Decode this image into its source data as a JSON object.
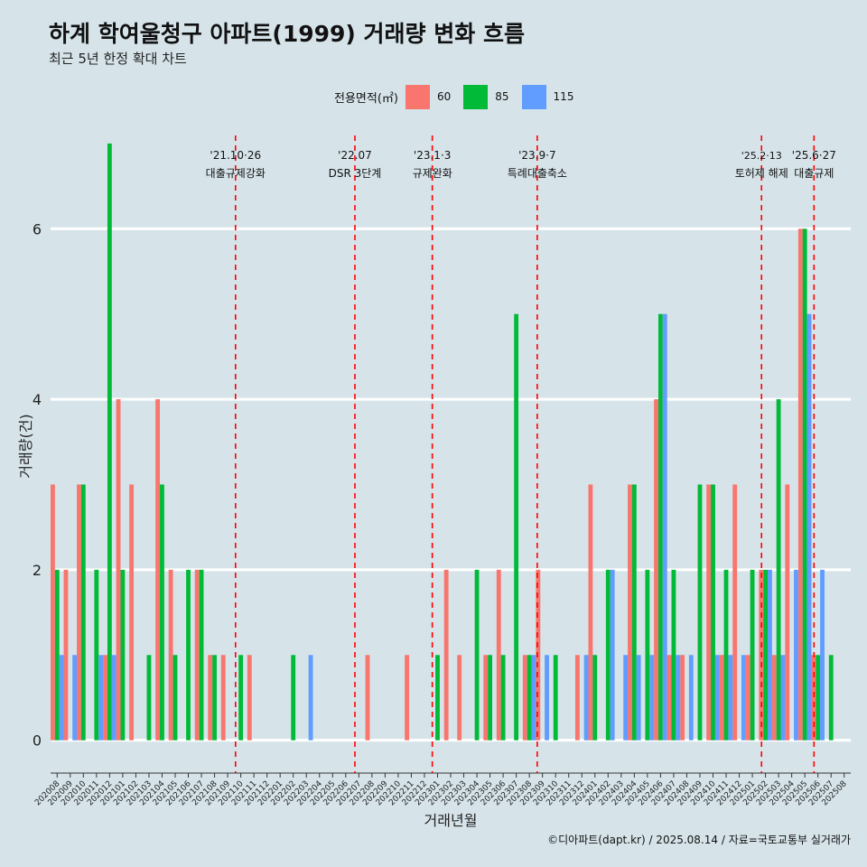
{
  "title": "하계 학여울청구 아파트(1999) 거래량 변화 흐름",
  "subtitle": "최근 5년 한정 확대 차트",
  "legend_title": "전용면적(㎡)",
  "caption": "©디아파트(dapt.kr) / 2025.08.14 / 자료=국토교통부 실거래가",
  "colors": {
    "background": "#d6e4ea",
    "60": "#f8766d",
    "85": "#00ba38",
    "115": "#619cff",
    "event_line": "#ff0000"
  },
  "chart_data": {
    "type": "bar",
    "xlabel": "거래년월",
    "ylabel": "거래량(건)",
    "ylim": [
      -0.3,
      7.2
    ],
    "yticks": [
      0,
      2,
      4,
      6
    ],
    "grid": true,
    "legend_position": "top",
    "categories": [
      "202008",
      "202009",
      "202010",
      "202011",
      "202012",
      "202101",
      "202102",
      "202103",
      "202104",
      "202105",
      "202106",
      "202107",
      "202108",
      "202109",
      "202110",
      "202111",
      "202112",
      "202201",
      "202202",
      "202203",
      "202204",
      "202205",
      "202206",
      "202207",
      "202208",
      "202209",
      "202210",
      "202211",
      "202212",
      "202301",
      "202302",
      "202303",
      "202304",
      "202305",
      "202306",
      "202307",
      "202308",
      "202309",
      "202310",
      "202311",
      "202312",
      "202401",
      "202402",
      "202403",
      "202404",
      "202405",
      "202406",
      "202407",
      "202408",
      "202409",
      "202410",
      "202411",
      "202412",
      "202501",
      "202502",
      "202503",
      "202504",
      "202505",
      "202506",
      "202507",
      "202508"
    ],
    "series": [
      {
        "name": "60",
        "values": [
          3,
          2,
          3,
          0,
          1,
          4,
          3,
          0,
          4,
          2,
          0,
          2,
          1,
          1,
          0,
          1,
          0,
          0,
          0,
          0,
          0,
          0,
          0,
          0,
          1,
          0,
          0,
          1,
          0,
          0,
          2,
          1,
          0,
          1,
          2,
          0,
          1,
          2,
          0,
          0,
          1,
          3,
          0,
          0,
          3,
          0,
          4,
          1,
          1,
          0,
          3,
          1,
          3,
          1,
          2,
          1,
          3,
          6,
          1,
          0,
          0
        ]
      },
      {
        "name": "85",
        "values": [
          2,
          0,
          3,
          2,
          7,
          2,
          0,
          1,
          3,
          1,
          2,
          2,
          1,
          0,
          1,
          0,
          0,
          0,
          1,
          0,
          0,
          0,
          0,
          0,
          0,
          0,
          0,
          0,
          0,
          1,
          0,
          0,
          2,
          1,
          1,
          5,
          1,
          0,
          1,
          0,
          0,
          1,
          2,
          0,
          3,
          2,
          5,
          2,
          0,
          3,
          3,
          2,
          0,
          2,
          2,
          4,
          0,
          6,
          1,
          1,
          0
        ]
      },
      {
        "name": "115",
        "values": [
          1,
          1,
          0,
          1,
          1,
          0,
          0,
          0,
          0,
          0,
          0,
          0,
          0,
          0,
          0,
          0,
          0,
          0,
          0,
          1,
          0,
          0,
          0,
          0,
          0,
          0,
          0,
          0,
          0,
          0,
          0,
          0,
          0,
          0,
          0,
          0,
          1,
          1,
          0,
          0,
          1,
          0,
          2,
          1,
          1,
          1,
          5,
          1,
          1,
          0,
          1,
          1,
          1,
          0,
          2,
          1,
          2,
          5,
          2,
          0,
          0
        ]
      }
    ],
    "events": [
      {
        "date": "'21.10·26",
        "label": "대출규제강화",
        "month_index": 14.1
      },
      {
        "date": "'22.07",
        "label": "DSR 3단계",
        "month_index": 23.2
      },
      {
        "date": "'23.1·3",
        "label": "규제완화",
        "month_index": 29.1
      },
      {
        "date": "'23.9·7",
        "label": "특례대출축소",
        "month_index": 37.1
      },
      {
        "date": "'25.2·13",
        "label": "토허제 해제",
        "month_index": 54.2
      },
      {
        "date": "'25.6·27",
        "label": "대출규제",
        "month_index": 58.2
      }
    ]
  }
}
